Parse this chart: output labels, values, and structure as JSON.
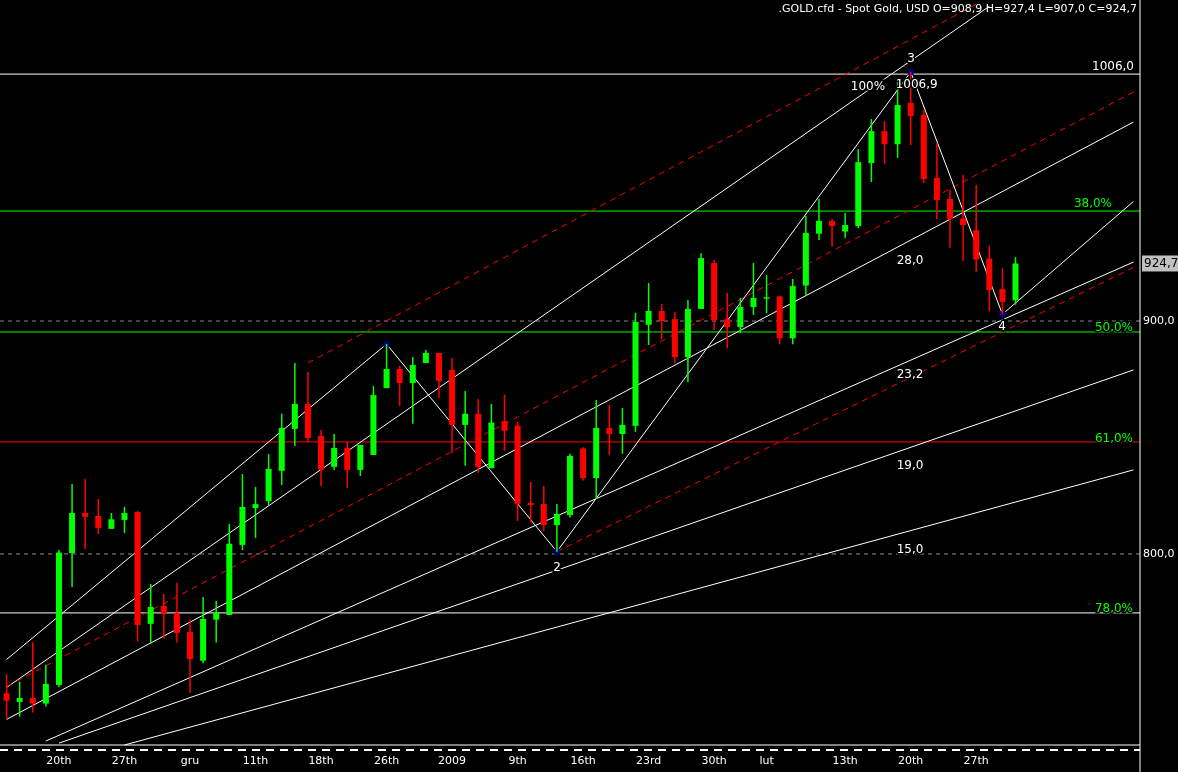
{
  "chart_data": {
    "type": "candlestick",
    "title": ".GOLD.cfd - Spot Gold, USD O=908,9 H=927,4 L=907,0 C=924,7",
    "categories": [
      null,
      null,
      null,
      null,
      "20th",
      null,
      null,
      null,
      null,
      "27th",
      null,
      null,
      null,
      null,
      "gru",
      null,
      null,
      null,
      null,
      "11th",
      null,
      null,
      null,
      null,
      "18th",
      null,
      null,
      null,
      null,
      "26th",
      null,
      null,
      null,
      null,
      "2009",
      null,
      null,
      null,
      null,
      "9th",
      null,
      null,
      null,
      null,
      "16th",
      null,
      null,
      null,
      null,
      "23rd",
      null,
      null,
      null,
      null,
      "30th",
      null,
      null,
      null,
      "lut",
      null,
      null,
      null,
      null,
      null,
      "13th",
      null,
      null,
      null,
      null,
      "20th",
      null,
      null,
      null,
      null,
      "27th",
      null,
      null,
      null,
      null,
      null,
      null,
      null,
      null,
      null,
      null,
      null,
      null
    ],
    "ohlc": [
      [
        740.2,
        748.5,
        729.5,
        737.0
      ],
      [
        736.5,
        745.2,
        730.2,
        738.2
      ],
      [
        738.2,
        762.1,
        731.9,
        735.8
      ],
      [
        735.8,
        752.4,
        734.5,
        744.2
      ],
      [
        743.8,
        801.7,
        742.8,
        800.6
      ],
      [
        800.4,
        830.0,
        785.8,
        817.6
      ],
      [
        817.6,
        832.2,
        802.1,
        815.9
      ],
      [
        816.3,
        823.6,
        808.6,
        811.2
      ],
      [
        810.8,
        817.6,
        810.8,
        814.9
      ],
      [
        814.6,
        820.2,
        809.0,
        817.6
      ],
      [
        818.0,
        818.5,
        762.4,
        769.5
      ],
      [
        770.0,
        787.1,
        761.4,
        777.3
      ],
      [
        777.7,
        782.8,
        763.7,
        774.4
      ],
      [
        774.7,
        787.6,
        762.0,
        766.1
      ],
      [
        766.5,
        772.0,
        740.3,
        754.9
      ],
      [
        754.2,
        781.5,
        753.1,
        772.1
      ],
      [
        771.8,
        779.8,
        762.0,
        774.7
      ],
      [
        773.8,
        812.9,
        773.8,
        804.4
      ],
      [
        803.9,
        834.3,
        801.7,
        820.2
      ],
      [
        819.7,
        828.8,
        806.9,
        821.4
      ],
      [
        822.7,
        842.9,
        821.0,
        836.5
      ],
      [
        835.7,
        860.2,
        829.6,
        854.1
      ],
      [
        853.7,
        882.0,
        846.4,
        864.4
      ],
      [
        864.4,
        878.1,
        848.1,
        849.8
      ],
      [
        850.6,
        853.2,
        829.2,
        836.1
      ],
      [
        837.4,
        851.5,
        836.1,
        845.5
      ],
      [
        845.5,
        848.1,
        828.4,
        836.1
      ],
      [
        836.1,
        846.8,
        833.5,
        846.8
      ],
      [
        842.5,
        872.1,
        842.5,
        868.2
      ],
      [
        871.2,
        890.1,
        871.2,
        879.4
      ],
      [
        879.4,
        880.7,
        863.6,
        873.4
      ],
      [
        873.4,
        884.5,
        855.9,
        881.1
      ],
      [
        882.0,
        887.6,
        882.0,
        886.3
      ],
      [
        886.3,
        886.3,
        867.1,
        874.3
      ],
      [
        879.0,
        884.1,
        843.5,
        855.4
      ],
      [
        855.4,
        870.0,
        837.9,
        860.2
      ],
      [
        860.2,
        866.5,
        834.9,
        837.3
      ],
      [
        836.8,
        864.4,
        836.8,
        856.4
      ],
      [
        857.0,
        868.4,
        844.3,
        852.9
      ],
      [
        855.1,
        856.8,
        814.2,
        821.5
      ],
      [
        821.9,
        830.9,
        813.4,
        821.0
      ],
      [
        821.5,
        829.2,
        809.9,
        812.4
      ],
      [
        812.4,
        821.5,
        801.0,
        817.2
      ],
      [
        816.7,
        843.0,
        815.7,
        842.1
      ],
      [
        845.3,
        845.8,
        831.5,
        832.6
      ],
      [
        832.6,
        866.1,
        823.6,
        854.1
      ],
      [
        854.1,
        863.9,
        842.5,
        851.5
      ],
      [
        851.5,
        862.7,
        843.0,
        855.4
      ],
      [
        855.0,
        903.5,
        852.4,
        899.6
      ],
      [
        898.4,
        916.3,
        889.7,
        904.3
      ],
      [
        904.3,
        907.3,
        892.2,
        900.0
      ],
      [
        900.8,
        904.0,
        882.0,
        884.5
      ],
      [
        884.5,
        909.0,
        873.8,
        905.2
      ],
      [
        905.2,
        929.1,
        905.2,
        927.0
      ],
      [
        924.9,
        926.2,
        896.1,
        900.4
      ],
      [
        900.8,
        912.0,
        888.4,
        897.4
      ],
      [
        897.4,
        909.9,
        894.8,
        906.0
      ],
      [
        906.0,
        924.9,
        902.6,
        909.9
      ],
      [
        909.6,
        919.8,
        903.4,
        910.2
      ],
      [
        910.6,
        910.6,
        890.0,
        892.6
      ],
      [
        892.6,
        918.0,
        890.0,
        915.0
      ],
      [
        915.2,
        945.1,
        910.9,
        937.8
      ],
      [
        937.5,
        952.4,
        934.8,
        943.0
      ],
      [
        943.0,
        943.8,
        932.0,
        940.8
      ],
      [
        938.4,
        946.4,
        935.6,
        941.2
      ],
      [
        940.8,
        973.8,
        939.9,
        968.2
      ],
      [
        967.8,
        986.7,
        959.7,
        981.5
      ],
      [
        981.5,
        985.8,
        967.4,
        975.9
      ],
      [
        975.9,
        1002.6,
        970.0,
        992.7
      ],
      [
        993.6,
        1006.9,
        975.5,
        988.0
      ],
      [
        988.4,
        990.6,
        959.2,
        960.9
      ],
      [
        961.4,
        976.4,
        943.8,
        951.9
      ],
      [
        952.4,
        956.3,
        931.4,
        943.8
      ],
      [
        944.0,
        962.7,
        925.8,
        941.2
      ],
      [
        939.0,
        958.4,
        921.2,
        926.4
      ],
      [
        926.8,
        932.3,
        904.3,
        913.3
      ],
      [
        913.7,
        922.7,
        902.9,
        908.2
      ],
      [
        908.9,
        927.4,
        907.0,
        924.7
      ],
      null,
      null,
      null,
      null,
      null,
      null,
      null,
      null,
      null
    ],
    "colors": [
      "#ff0000",
      "#00ff00",
      "#ff0000",
      "#00ff00",
      "#00ff00",
      "#00ff00",
      "#ff0000",
      "#ff0000",
      "#00ff00",
      "#00ff00",
      "#ff0000",
      "#00ff00",
      "#ff0000",
      "#ff0000",
      "#ff0000",
      "#00ff00",
      "#00ff00",
      "#00ff00",
      "#00ff00",
      "#00ff00",
      "#00ff00",
      "#00ff00",
      "#00ff00",
      "#ff0000",
      "#ff0000",
      "#00ff00",
      "#ff0000",
      "#00ff00",
      "#00ff00",
      "#00ff00",
      "#ff0000",
      "#00ff00",
      "#00ff00",
      "#ff0000",
      "#ff0000",
      "#00ff00",
      "#ff0000",
      "#00ff00",
      "#ff0000",
      "#ff0000",
      "#ff0000",
      "#ff0000",
      "#00ff00",
      "#00ff00",
      "#ff0000",
      "#00ff00",
      "#ff0000",
      "#00ff00",
      "#00ff00",
      "#00ff00",
      "#ff0000",
      "#ff0000",
      "#00ff00",
      "#00ff00",
      "#ff0000",
      "#ff0000",
      "#00ff00",
      "#00ff00",
      "#00ff00",
      "#ff0000",
      "#00ff00",
      "#00ff00",
      "#00ff00",
      "#ff0000",
      "#00ff00",
      "#00ff00",
      "#00ff00",
      "#ff0000",
      "#00ff00",
      "#ff0000",
      "#ff0000",
      "#ff0000",
      "#ff0000",
      "#ff0000",
      "#ff0000",
      "#ff0000",
      "#ff0000",
      "#00ff00",
      null,
      null,
      null,
      null,
      null,
      null,
      null,
      null,
      null
    ],
    "series": [
      {
        "type": "line",
        "color": "#ffffff",
        "line_style": "solid",
        "values": [
          754.7,
          null,
          null,
          null,
          null,
          null,
          null,
          null,
          null,
          null,
          null,
          null,
          null,
          null,
          null,
          null,
          null,
          null,
          null,
          null,
          null,
          null,
          null,
          null,
          null,
          null,
          null,
          null,
          null,
          890.1,
          null,
          null,
          null,
          null,
          null,
          null,
          null,
          null,
          null,
          null,
          null,
          null,
          null,
          null,
          null,
          null,
          null,
          null,
          null,
          null,
          null,
          null,
          null,
          null,
          null,
          null,
          null,
          null,
          null,
          null,
          null,
          null,
          null,
          null,
          null,
          null,
          null,
          null,
          null,
          null,
          null,
          null,
          null,
          null,
          null,
          null,
          null,
          null,
          null,
          null,
          null,
          null,
          null,
          null,
          null,
          null,
          null
        ]
      },
      {
        "type": "line",
        "color": "#ffffff",
        "line_style": "solid",
        "values": [
          742.7,
          null,
          null,
          null,
          null,
          null,
          null,
          null,
          null,
          null,
          null,
          null,
          null,
          null,
          null,
          null,
          null,
          null,
          null,
          null,
          null,
          null,
          null,
          null,
          null,
          null,
          null,
          null,
          null,
          null,
          null,
          null,
          null,
          null,
          null,
          null,
          null,
          null,
          null,
          null,
          null,
          null,
          null,
          null,
          null,
          null,
          null,
          null,
          null,
          null,
          null,
          null,
          null,
          null,
          null,
          null,
          null,
          null,
          null,
          null,
          null,
          null,
          null,
          null,
          null,
          null,
          null,
          null,
          null,
          null,
          null,
          null,
          null,
          null,
          null,
          1035.1,
          null,
          null,
          null,
          null,
          null,
          null,
          null,
          null,
          null,
          null,
          null
        ]
      },
      {
        "type": "line",
        "color": "#ffffff",
        "line_style": "solid",
        "values": [
          729.0,
          null,
          null,
          null,
          null,
          null,
          null,
          null,
          null,
          null,
          null,
          null,
          null,
          null,
          null,
          null,
          null,
          null,
          null,
          null,
          null,
          null,
          null,
          null,
          null,
          null,
          null,
          null,
          null,
          null,
          null,
          null,
          null,
          null,
          null,
          null,
          null,
          null,
          null,
          null,
          null,
          null,
          null,
          null,
          null,
          null,
          null,
          null,
          null,
          null,
          null,
          null,
          null,
          null,
          null,
          null,
          null,
          null,
          null,
          null,
          null,
          null,
          null,
          null,
          null,
          null,
          null,
          null,
          null,
          null,
          null,
          null,
          null,
          null,
          null,
          null,
          null,
          null,
          null,
          null,
          null,
          null,
          null,
          null,
          null,
          null,
          985.4
        ]
      },
      {
        "type": "line",
        "color": "#ffffff",
        "line_style": "solid",
        "values": [
          null,
          null,
          null,
          719.7,
          null,
          null,
          null,
          null,
          null,
          null,
          null,
          null,
          null,
          null,
          null,
          null,
          null,
          null,
          null,
          null,
          null,
          null,
          null,
          null,
          null,
          null,
          null,
          null,
          null,
          null,
          null,
          null,
          null,
          null,
          null,
          null,
          null,
          null,
          null,
          null,
          null,
          null,
          null,
          null,
          null,
          null,
          null,
          null,
          null,
          null,
          null,
          null,
          null,
          null,
          null,
          null,
          null,
          null,
          null,
          null,
          null,
          null,
          null,
          null,
          null,
          null,
          null,
          null,
          null,
          null,
          null,
          null,
          null,
          null,
          null,
          null,
          null,
          null,
          null,
          null,
          null,
          null,
          null,
          null,
          null,
          null,
          925.3
        ]
      },
      {
        "type": "line",
        "color": "#ffffff",
        "line_style": "solid",
        "values": [
          null,
          null,
          null,
          null,
          718.8,
          null,
          null,
          null,
          null,
          null,
          null,
          null,
          null,
          null,
          null,
          null,
          null,
          null,
          null,
          null,
          null,
          null,
          null,
          null,
          null,
          null,
          null,
          null,
          null,
          null,
          null,
          null,
          null,
          null,
          null,
          null,
          null,
          null,
          null,
          null,
          null,
          null,
          null,
          null,
          null,
          null,
          null,
          null,
          null,
          null,
          null,
          null,
          null,
          null,
          null,
          null,
          null,
          null,
          null,
          null,
          null,
          null,
          null,
          null,
          null,
          null,
          null,
          null,
          null,
          null,
          null,
          null,
          null,
          null,
          null,
          null,
          null,
          null,
          null,
          null,
          null,
          null,
          null,
          null,
          null,
          null,
          879.0
        ]
      },
      {
        "type": "line",
        "color": "#ffffff",
        "line_style": "solid",
        "values": [
          null,
          null,
          null,
          null,
          null,
          null,
          null,
          null,
          null,
          718.0,
          null,
          null,
          null,
          null,
          null,
          null,
          null,
          null,
          null,
          null,
          null,
          null,
          null,
          null,
          null,
          null,
          null,
          null,
          null,
          null,
          null,
          null,
          null,
          null,
          null,
          null,
          null,
          null,
          null,
          null,
          null,
          null,
          null,
          null,
          null,
          null,
          null,
          null,
          null,
          null,
          null,
          null,
          null,
          null,
          null,
          null,
          null,
          null,
          null,
          null,
          null,
          null,
          null,
          null,
          null,
          null,
          null,
          null,
          null,
          null,
          null,
          null,
          null,
          null,
          null,
          null,
          null,
          null,
          null,
          null,
          null,
          null,
          null,
          null,
          null,
          null,
          836.1
        ]
      },
      {
        "type": "line",
        "color": "#ffffff",
        "line_style": "solid",
        "values": [
          null,
          null,
          null,
          null,
          null,
          null,
          null,
          null,
          null,
          null,
          null,
          null,
          null,
          null,
          null,
          null,
          null,
          null,
          null,
          null,
          null,
          null,
          null,
          null,
          null,
          null,
          null,
          null,
          null,
          null,
          null,
          null,
          null,
          null,
          null,
          null,
          null,
          null,
          null,
          null,
          null,
          null,
          null,
          null,
          null,
          null,
          null,
          null,
          null,
          null,
          null,
          null,
          null,
          null,
          null,
          null,
          null,
          null,
          null,
          null,
          null,
          null,
          null,
          null,
          null,
          null,
          null,
          null,
          null,
          null,
          null,
          null,
          null,
          null,
          null,
          null,
          902.9,
          null,
          null,
          null,
          null,
          null,
          null,
          null,
          null,
          null,
          951.3
        ]
      },
      {
        "type": "line",
        "color": "#ff0000",
        "line_style": "dashed",
        "values": [
          null,
          null,
          null,
          null,
          null,
          null,
          null,
          null,
          null,
          null,
          null,
          null,
          null,
          null,
          null,
          null,
          null,
          null,
          null,
          null,
          null,
          null,
          null,
          882.0,
          null,
          null,
          null,
          null,
          null,
          null,
          null,
          null,
          null,
          null,
          null,
          null,
          null,
          null,
          null,
          null,
          null,
          null,
          null,
          null,
          null,
          null,
          null,
          null,
          null,
          null,
          null,
          null,
          null,
          null,
          null,
          null,
          null,
          null,
          null,
          null,
          null,
          null,
          null,
          null,
          null,
          null,
          null,
          null,
          null,
          null,
          null,
          null,
          null,
          null,
          1036.0,
          null,
          null,
          null,
          null,
          null,
          null,
          null,
          null,
          null,
          null,
          null,
          null
        ]
      },
      {
        "type": "line",
        "color": "#ff0000",
        "line_style": "dashed",
        "values": [
          743.1,
          null,
          null,
          null,
          null,
          null,
          null,
          null,
          null,
          null,
          null,
          null,
          null,
          null,
          null,
          null,
          null,
          null,
          null,
          null,
          null,
          null,
          null,
          null,
          null,
          null,
          null,
          null,
          null,
          null,
          null,
          null,
          null,
          null,
          null,
          null,
          null,
          null,
          null,
          null,
          null,
          null,
          null,
          null,
          null,
          null,
          null,
          null,
          null,
          null,
          null,
          null,
          null,
          null,
          null,
          null,
          null,
          null,
          null,
          null,
          null,
          null,
          null,
          null,
          null,
          null,
          null,
          null,
          null,
          null,
          null,
          null,
          null,
          null,
          null,
          null,
          null,
          null,
          null,
          null,
          null,
          null,
          null,
          null,
          null,
          null,
          998.3
        ]
      },
      {
        "type": "line",
        "color": "#ff0000",
        "line_style": "dashed",
        "values": [
          null,
          null,
          null,
          null,
          null,
          null,
          null,
          null,
          null,
          null,
          null,
          null,
          null,
          null,
          null,
          null,
          null,
          null,
          null,
          null,
          null,
          null,
          null,
          null,
          null,
          null,
          null,
          null,
          null,
          null,
          null,
          null,
          null,
          null,
          null,
          null,
          null,
          null,
          null,
          null,
          null,
          null,
          801.0,
          null,
          null,
          null,
          null,
          null,
          null,
          null,
          null,
          null,
          null,
          null,
          null,
          null,
          null,
          null,
          null,
          null,
          null,
          null,
          null,
          null,
          null,
          null,
          null,
          null,
          null,
          null,
          null,
          null,
          null,
          null,
          null,
          null,
          null,
          null,
          null,
          null,
          null,
          null,
          null,
          null,
          null,
          null,
          923.0
        ]
      },
      {
        "type": "line",
        "color": "#ffffff",
        "line_style": "solid",
        "values": [
          null,
          null,
          null,
          null,
          null,
          null,
          null,
          null,
          null,
          null,
          null,
          null,
          null,
          null,
          null,
          null,
          null,
          null,
          null,
          null,
          null,
          null,
          null,
          null,
          null,
          null,
          null,
          null,
          null,
          890.1,
          null,
          null,
          null,
          null,
          null,
          null,
          null,
          null,
          null,
          null,
          null,
          null,
          801.0,
          null,
          null,
          null,
          null,
          null,
          null,
          null,
          null,
          null,
          null,
          null,
          null,
          null,
          null,
          null,
          null,
          null,
          null,
          null,
          null,
          null,
          null,
          null,
          null,
          null,
          null,
          1006.9,
          null,
          null,
          null,
          null,
          null,
          null,
          902.9,
          null,
          null,
          null,
          null,
          null,
          null,
          null,
          null,
          null,
          null
        ]
      },
      {
        "type": "scatter",
        "color": "#000080",
        "marker": "square",
        "values": [
          null,
          null,
          null,
          null,
          null,
          null,
          null,
          null,
          null,
          null,
          null,
          null,
          null,
          null,
          null,
          null,
          null,
          null,
          null,
          null,
          null,
          null,
          null,
          null,
          null,
          null,
          null,
          null,
          null,
          890.1,
          null,
          null,
          null,
          null,
          null,
          null,
          null,
          null,
          null,
          null,
          null,
          null,
          801.0,
          null,
          null,
          null,
          null,
          null,
          null,
          null,
          null,
          null,
          null,
          null,
          null,
          null,
          null,
          null,
          null,
          null,
          null,
          null,
          null,
          null,
          null,
          null,
          null,
          null,
          null,
          1006.9,
          null,
          null,
          null,
          null,
          null,
          null,
          902.9,
          null,
          null,
          null,
          null,
          null,
          null,
          null,
          null,
          null,
          null
        ],
        "value_labels": [
          null,
          null,
          null,
          null,
          null,
          null,
          null,
          null,
          null,
          null,
          null,
          null,
          null,
          null,
          null,
          null,
          null,
          null,
          null,
          null,
          null,
          null,
          null,
          null,
          null,
          null,
          null,
          null,
          null,
          null,
          null,
          null,
          null,
          null,
          null,
          null,
          null,
          null,
          null,
          null,
          null,
          null,
          null,
          null,
          null,
          null,
          null,
          null,
          null,
          null,
          null,
          null,
          null,
          null,
          null,
          null,
          null,
          null,
          null,
          null,
          null,
          null,
          null,
          null,
          null,
          null,
          null,
          null,
          null,
          "1006,9",
          null,
          null,
          null,
          null,
          null,
          null,
          null,
          null,
          null,
          null,
          null,
          null,
          null,
          null,
          null,
          null,
          null
        ]
      }
    ],
    "ylim": [
      718,
      1037.8
    ],
    "yticks": [
      {
        "value": 800,
        "label": "800,0"
      },
      {
        "value": 900,
        "label": "900,0"
      }
    ],
    "grid": "y",
    "ref_lines": [
      {
        "axis": "y",
        "value": 1006,
        "label": "1006,0",
        "color": "#ffffff"
      },
      {
        "axis": "y",
        "value": 947.2,
        "color": "#00ff00"
      },
      {
        "axis": "y",
        "value": 895.3,
        "color": "#00ff00"
      },
      {
        "axis": "y",
        "value": 848.1,
        "color": "#ff0000"
      },
      {
        "axis": "y",
        "value": 774.7,
        "color": "#ffffff"
      }
    ],
    "annotations": [
      "2",
      "3",
      "4",
      "100%",
      "28,0",
      "23,2",
      "19,0",
      "15,0",
      "38,0%",
      "50,0%",
      "61,0%",
      "78,0%",
      {
        "text": "924,7",
        "y": 924.7
      }
    ]
  }
}
